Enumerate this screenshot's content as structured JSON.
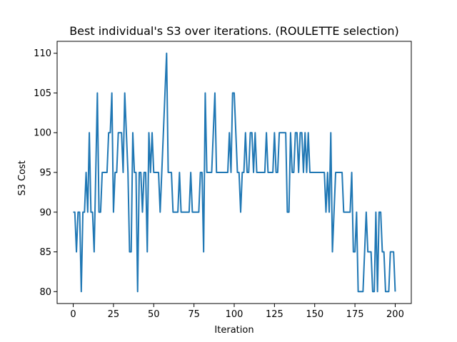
{
  "chart_data": {
    "type": "line",
    "title": "Best individual's S3 over iterations. (ROULETTE selection)",
    "xlabel": "Iteration",
    "ylabel": "S3 Cost",
    "xlim": [
      -10,
      210
    ],
    "ylim": [
      78.5,
      111.5
    ],
    "x_ticks": [
      0,
      25,
      50,
      75,
      100,
      125,
      150,
      175,
      200
    ],
    "y_ticks": [
      80,
      85,
      90,
      95,
      100,
      105,
      110
    ],
    "grid": false,
    "line_color": "#1f77b4",
    "series": [
      {
        "x": [
          0,
          1,
          2,
          3,
          4,
          5,
          6,
          7,
          8,
          9,
          10,
          11,
          12,
          13,
          14,
          15,
          16,
          17,
          18,
          19,
          20,
          21,
          22,
          23,
          24,
          25,
          26,
          27,
          28,
          29,
          30,
          31,
          32,
          33,
          34,
          35,
          36,
          37,
          38,
          39,
          40,
          41,
          42,
          43,
          44,
          45,
          46,
          47,
          48,
          49,
          50,
          51,
          52,
          53,
          54,
          55,
          56,
          57,
          58,
          59,
          60,
          61,
          62,
          63,
          64,
          65,
          66,
          67,
          68,
          69,
          70,
          71,
          72,
          73,
          74,
          75,
          76,
          77,
          78,
          79,
          80,
          81,
          82,
          83,
          84,
          85,
          86,
          87,
          88,
          89,
          90,
          91,
          92,
          93,
          94,
          95,
          96,
          97,
          98,
          99,
          100,
          101,
          102,
          103,
          104,
          105,
          106,
          107,
          108,
          109,
          110,
          111,
          112,
          113,
          114,
          115,
          116,
          117,
          118,
          119,
          120,
          121,
          122,
          123,
          124,
          125,
          126,
          127,
          128,
          129,
          130,
          131,
          132,
          133,
          134,
          135,
          136,
          137,
          138,
          139,
          140,
          141,
          142,
          143,
          144,
          145,
          146,
          147,
          148,
          149,
          150,
          151,
          152,
          153,
          154,
          155,
          156,
          157,
          158,
          159,
          160,
          161,
          162,
          163,
          164,
          165,
          166,
          167,
          168,
          169,
          170,
          171,
          172,
          173,
          174,
          175,
          176,
          177,
          178,
          179,
          180,
          181,
          182,
          183,
          184,
          185,
          186,
          187,
          188,
          189,
          190,
          191,
          192,
          193,
          194,
          195,
          196,
          197,
          198,
          199,
          200
        ],
        "y": [
          90,
          90,
          85,
          90,
          90,
          80,
          90,
          90,
          95,
          90,
          100,
          90,
          90,
          85,
          95,
          105,
          90,
          90,
          95,
          95,
          95,
          95,
          100,
          100,
          105,
          90,
          95,
          95,
          100,
          100,
          100,
          95,
          105,
          100,
          95,
          85,
          85,
          100,
          95,
          95,
          80,
          95,
          95,
          90,
          95,
          95,
          85,
          100,
          95,
          100,
          95,
          95,
          95,
          95,
          90,
          95,
          100,
          105,
          110,
          95,
          95,
          95,
          90,
          90,
          90,
          90,
          95,
          90,
          90,
          90,
          90,
          90,
          90,
          95,
          90,
          90,
          90,
          90,
          90,
          95,
          95,
          85,
          105,
          95,
          95,
          95,
          95,
          100,
          105,
          95,
          95,
          95,
          95,
          95,
          95,
          95,
          95,
          100,
          95,
          105,
          105,
          100,
          95,
          95,
          90,
          95,
          95,
          100,
          95,
          95,
          100,
          100,
          95,
          100,
          95,
          95,
          95,
          95,
          95,
          95,
          100,
          95,
          95,
          95,
          95,
          100,
          95,
          95,
          100,
          100,
          100,
          100,
          100,
          90,
          90,
          100,
          95,
          95,
          100,
          100,
          95,
          100,
          100,
          95,
          100,
          95,
          100,
          95,
          95,
          95,
          95,
          95,
          95,
          95,
          95,
          95,
          95,
          90,
          95,
          90,
          100,
          85,
          90,
          95,
          95,
          95,
          95,
          95,
          90,
          90,
          90,
          90,
          90,
          95,
          85,
          85,
          90,
          80,
          80,
          80,
          80,
          85,
          90,
          85,
          85,
          85,
          80,
          80,
          90,
          80,
          90,
          90,
          85,
          85,
          80,
          80,
          80,
          85,
          85,
          85,
          80
        ]
      }
    ]
  }
}
